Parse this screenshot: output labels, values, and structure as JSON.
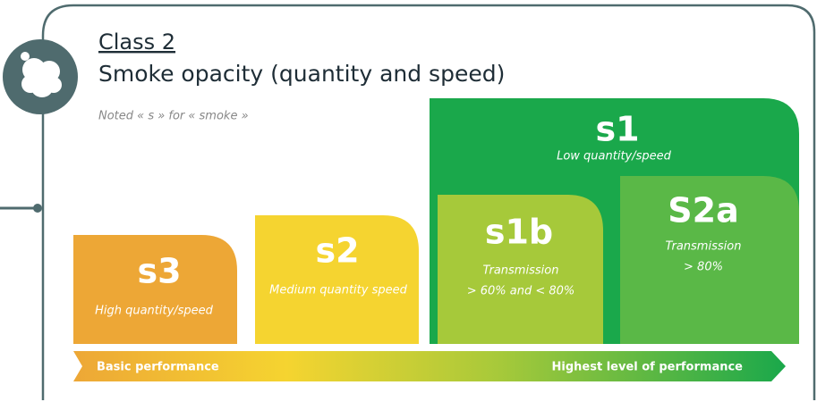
{
  "header": {
    "class": "Class 2",
    "title": "Smoke opacity (quantity and speed)",
    "note": "Noted « s » for « smoke »"
  },
  "boxes": [
    {
      "label": "s3",
      "lines": [
        "High quantity/speed"
      ]
    },
    {
      "label": "s2",
      "lines": [
        "Medium quantity speed"
      ]
    },
    {
      "label": "s1",
      "lines": [
        "Low quantity/speed"
      ]
    },
    {
      "label": "s1b",
      "lines": [
        "Transmission",
        "> 60% and < 80%"
      ]
    },
    {
      "label": "S2a",
      "lines": [
        "Transmission",
        "> 80%"
      ]
    }
  ],
  "scale": {
    "low": "Basic performance",
    "high": "Highest level of performance"
  }
}
